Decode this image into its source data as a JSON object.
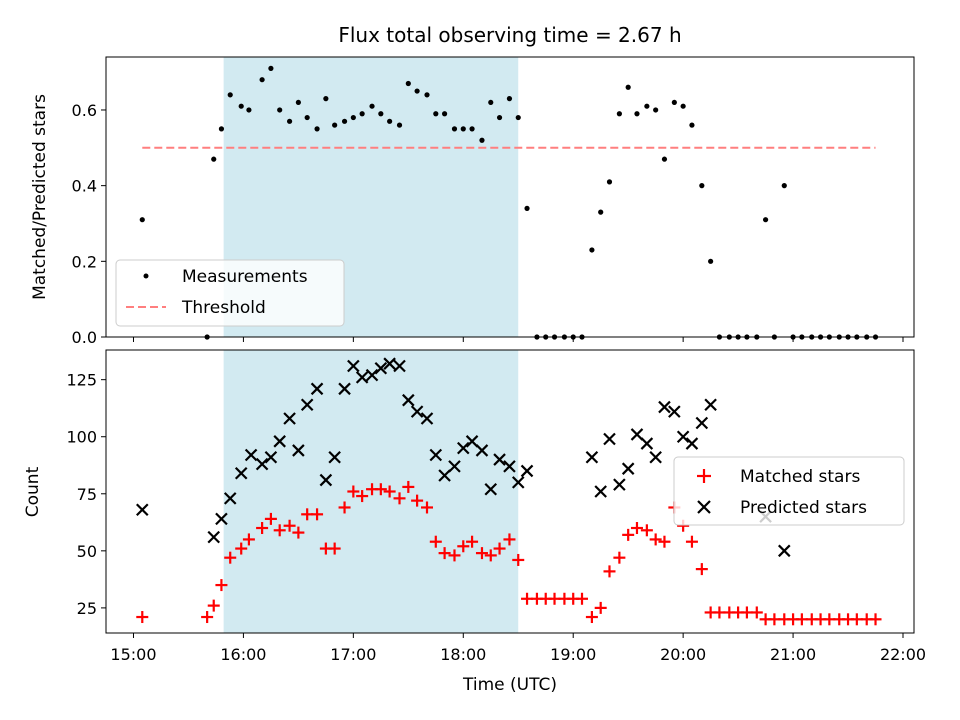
{
  "chart_data": [
    {
      "type": "scatter",
      "title": "Flux total observing time = 2.67 h",
      "xlabel": "",
      "ylabel": "Matched/Predicted stars",
      "xlim": [
        14.75,
        22.1
      ],
      "ylim": [
        0,
        0.74
      ],
      "yticks": [
        0.0,
        0.2,
        0.4,
        0.6
      ],
      "ytick_labels": [
        "0.0",
        "0.2",
        "0.4",
        "0.6"
      ],
      "xticks": [
        15,
        16,
        17,
        18,
        19,
        20,
        21,
        22
      ],
      "shaded_span": [
        15.82,
        18.5
      ],
      "legend_position": "lower-left",
      "series": [
        {
          "name": "Measurements",
          "style": "point",
          "color": "#000000",
          "x": [
            15.08,
            15.67,
            15.73,
            15.8,
            15.88,
            15.98,
            16.05,
            16.17,
            16.25,
            16.33,
            16.42,
            16.5,
            16.58,
            16.67,
            16.75,
            16.83,
            16.92,
            17.0,
            17.08,
            17.17,
            17.25,
            17.33,
            17.42,
            17.5,
            17.58,
            17.67,
            17.75,
            17.83,
            17.92,
            18.0,
            18.08,
            18.17,
            18.25,
            18.33,
            18.42,
            18.5,
            18.58,
            18.67,
            18.75,
            18.83,
            18.92,
            19.0,
            19.08,
            19.17,
            19.25,
            19.33,
            19.42,
            19.5,
            19.58,
            19.67,
            19.75,
            19.83,
            19.92,
            20.0,
            20.08,
            20.17,
            20.25,
            20.33,
            20.42,
            20.5,
            20.58,
            20.67,
            20.75,
            20.83,
            20.92,
            21.0,
            21.08,
            21.17,
            21.25,
            21.33,
            21.42,
            21.5,
            21.58,
            21.67,
            21.75
          ],
          "y": [
            0.31,
            0.0,
            0.47,
            0.55,
            0.64,
            0.61,
            0.6,
            0.68,
            0.71,
            0.6,
            0.57,
            0.62,
            0.58,
            0.55,
            0.63,
            0.56,
            0.57,
            0.58,
            0.59,
            0.61,
            0.59,
            0.57,
            0.56,
            0.67,
            0.65,
            0.64,
            0.59,
            0.59,
            0.55,
            0.55,
            0.55,
            0.52,
            0.62,
            0.58,
            0.63,
            0.58,
            0.34,
            0.0,
            0.0,
            0.0,
            0.0,
            0.0,
            0.0,
            0.23,
            0.33,
            0.41,
            0.59,
            0.66,
            0.59,
            0.61,
            0.6,
            0.47,
            0.62,
            0.61,
            0.56,
            0.4,
            0.2,
            0.0,
            0.0,
            0.0,
            0.0,
            0.0,
            0.31,
            0.0,
            0.4,
            0.0,
            0.0,
            0.0,
            0.0,
            0.0,
            0.0,
            0.0,
            0.0,
            0.0,
            0.0
          ]
        },
        {
          "name": "Threshold",
          "style": "dashed-line",
          "color": "#ff7f7f",
          "x": [
            15.08,
            21.75
          ],
          "y": [
            0.5,
            0.5
          ]
        }
      ]
    },
    {
      "type": "scatter",
      "title": "",
      "xlabel": "Time (UTC)",
      "ylabel": "Count",
      "xlim": [
        14.75,
        22.1
      ],
      "ylim": [
        14,
        138
      ],
      "yticks": [
        25,
        50,
        75,
        100,
        125
      ],
      "ytick_labels": [
        "25",
        "50",
        "75",
        "100",
        "125"
      ],
      "xticks": [
        15,
        16,
        17,
        18,
        19,
        20,
        21,
        22
      ],
      "xtick_labels": [
        "15:00",
        "16:00",
        "17:00",
        "18:00",
        "19:00",
        "20:00",
        "21:00",
        "22:00"
      ],
      "shaded_span": [
        15.82,
        18.5
      ],
      "legend_position": "center-right",
      "series": [
        {
          "name": "Matched stars",
          "style": "plus",
          "color": "#ff0000",
          "x": [
            15.08,
            15.67,
            15.73,
            15.8,
            15.88,
            15.98,
            16.05,
            16.17,
            16.25,
            16.33,
            16.42,
            16.5,
            16.58,
            16.67,
            16.75,
            16.83,
            16.92,
            17.0,
            17.08,
            17.17,
            17.25,
            17.33,
            17.42,
            17.5,
            17.58,
            17.67,
            17.75,
            17.83,
            17.92,
            18.0,
            18.08,
            18.17,
            18.25,
            18.33,
            18.42,
            18.5,
            18.58,
            18.67,
            18.75,
            18.83,
            18.92,
            19.0,
            19.08,
            19.17,
            19.25,
            19.33,
            19.42,
            19.5,
            19.58,
            19.67,
            19.75,
            19.83,
            19.92,
            20.0,
            20.08,
            20.17,
            20.25,
            20.33,
            20.42,
            20.5,
            20.58,
            20.67,
            20.75,
            20.83,
            20.92,
            21.0,
            21.08,
            21.17,
            21.25,
            21.33,
            21.42,
            21.5,
            21.58,
            21.67,
            21.75
          ],
          "y": [
            21,
            21,
            26,
            35,
            47,
            51,
            55,
            60,
            64,
            59,
            61,
            58,
            66,
            66,
            51,
            51,
            69,
            76,
            74,
            77,
            77,
            76,
            73,
            78,
            72,
            69,
            54,
            49,
            48,
            52,
            54,
            49,
            48,
            51,
            55,
            46,
            29,
            29,
            29,
            29,
            29,
            29,
            29,
            21,
            25,
            41,
            47,
            57,
            60,
            59,
            55,
            54,
            69,
            61,
            54,
            42,
            23,
            23,
            23,
            23,
            23,
            23,
            20,
            20,
            20,
            20,
            20,
            20,
            20,
            20,
            20,
            20,
            20,
            20,
            20
          ]
        },
        {
          "name": "Predicted stars",
          "style": "x",
          "color": "#000000",
          "x": [
            15.08,
            15.73,
            15.8,
            15.88,
            15.98,
            16.07,
            16.17,
            16.25,
            16.33,
            16.42,
            16.5,
            16.58,
            16.67,
            16.75,
            16.83,
            16.92,
            17.0,
            17.08,
            17.17,
            17.25,
            17.33,
            17.42,
            17.5,
            17.58,
            17.67,
            17.75,
            17.83,
            17.92,
            18.0,
            18.08,
            18.17,
            18.25,
            18.33,
            18.42,
            18.5,
            18.58,
            19.17,
            19.25,
            19.33,
            19.42,
            19.5,
            19.58,
            19.67,
            19.75,
            19.83,
            19.92,
            20.0,
            20.08,
            20.17,
            20.25,
            20.75,
            20.92
          ],
          "y": [
            68,
            56,
            64,
            73,
            84,
            92,
            88,
            91,
            98,
            108,
            94,
            114,
            121,
            81,
            91,
            121,
            131,
            126,
            127,
            130,
            132,
            131,
            116,
            111,
            108,
            92,
            83,
            87,
            95,
            98,
            94,
            77,
            90,
            87,
            80,
            85,
            91,
            76,
            99,
            79,
            86,
            101,
            97,
            91,
            113,
            111,
            100,
            97,
            106,
            114,
            65,
            50
          ]
        }
      ]
    }
  ]
}
